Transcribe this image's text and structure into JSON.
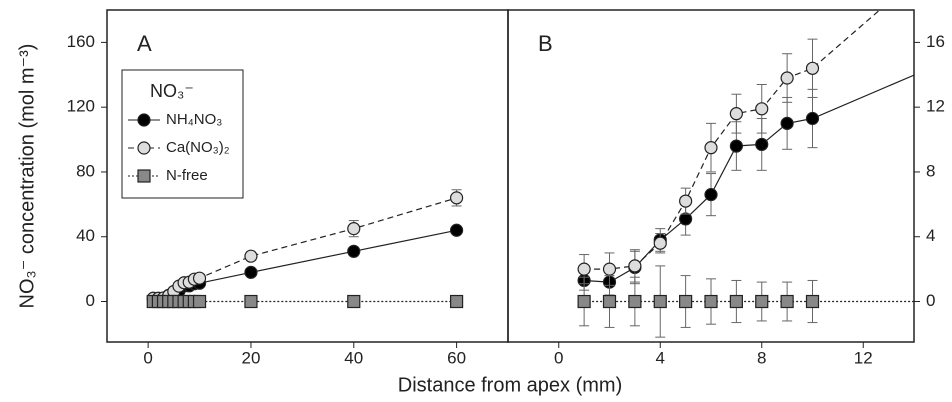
{
  "chart_data": [
    {
      "type": "line",
      "panel_label": "A",
      "ylabel": "NO₃⁻ concentration (mol m⁻³)",
      "xlabel": "Distance from apex (mm)",
      "xlim": [
        -8,
        70
      ],
      "ylim": [
        -25,
        180
      ],
      "xticks": [
        0,
        20,
        40,
        60
      ],
      "yticks": [
        0,
        40,
        80,
        120,
        160
      ],
      "y_axis_side": "left",
      "legend": "upper left",
      "legend_title": "NO₃⁻",
      "series": [
        {
          "name": "NH₄NO₃",
          "color": "#000000",
          "line": "solid",
          "marker": "circle",
          "x": [
            1,
            2,
            3,
            4,
            5,
            6,
            7,
            8,
            9,
            10,
            20,
            40,
            60
          ],
          "values": [
            1.3,
            1.2,
            2.1,
            3.8,
            5.1,
            6.6,
            9.6,
            9.7,
            11.0,
            11.3,
            18,
            31,
            44
          ],
          "errors": [
            0.6,
            0.8,
            1.0,
            0.7,
            1.0,
            1.3,
            1.5,
            1.6,
            1.6,
            1.8,
            1.5,
            2,
            2
          ]
        },
        {
          "name": "Ca(NO₃)₂",
          "color": "#dddddd",
          "line": "dashed",
          "marker": "circle",
          "x": [
            1,
            2,
            3,
            4,
            5,
            6,
            7,
            8,
            9,
            10,
            20,
            40,
            60
          ],
          "values": [
            2.0,
            2.0,
            2.2,
            3.6,
            6.2,
            9.5,
            11.6,
            11.9,
            13.8,
            14.4,
            28,
            45,
            64
          ],
          "errors": [
            0.9,
            1.0,
            1.0,
            0.6,
            0.8,
            1.5,
            1.2,
            1.5,
            1.5,
            1.8,
            2,
            5,
            5
          ]
        },
        {
          "name": "N-free",
          "color": "#888888",
          "line": "dotted",
          "marker": "square",
          "x": [
            1,
            2,
            3,
            4,
            5,
            6,
            7,
            8,
            9,
            10,
            20,
            40,
            60
          ],
          "values": [
            0,
            0,
            0,
            0,
            0,
            0,
            0,
            0,
            0,
            0,
            0,
            0,
            0
          ],
          "errors": [
            1.5,
            1.6,
            1.5,
            2.2,
            1.6,
            1.4,
            1.3,
            1.2,
            1.2,
            1.3,
            0.5,
            0.5,
            0.5
          ]
        }
      ]
    },
    {
      "type": "line",
      "panel_label": "B",
      "xlim": [
        -2,
        14
      ],
      "ylim": [
        -2.5,
        18
      ],
      "xticks": [
        0,
        4,
        8,
        12
      ],
      "yticks": [
        0,
        4,
        8,
        12,
        16
      ],
      "y_axis_side": "right",
      "series": [
        {
          "name": "NH₄NO₃",
          "color": "#000000",
          "line": "solid",
          "marker": "circle",
          "x": [
            1,
            2,
            3,
            4,
            5,
            6,
            7,
            8,
            9,
            10,
            20
          ],
          "values": [
            1.3,
            1.2,
            2.1,
            3.8,
            5.1,
            6.6,
            9.6,
            9.7,
            11.0,
            11.3,
            18
          ],
          "errors": [
            0.6,
            0.8,
            1.0,
            0.7,
            1.0,
            1.3,
            1.5,
            1.6,
            1.6,
            1.8,
            1.5
          ]
        },
        {
          "name": "Ca(NO₃)₂",
          "color": "#dddddd",
          "line": "dashed",
          "marker": "circle",
          "x": [
            1,
            2,
            3,
            4,
            5,
            6,
            7,
            8,
            9,
            10,
            20
          ],
          "values": [
            2.0,
            2.0,
            2.2,
            3.6,
            6.2,
            9.5,
            11.6,
            11.9,
            13.8,
            14.4,
            28
          ],
          "errors": [
            0.9,
            1.0,
            1.0,
            0.6,
            0.8,
            1.5,
            1.2,
            1.5,
            1.5,
            1.8,
            2
          ]
        },
        {
          "name": "N-free",
          "color": "#888888",
          "line": "dotted",
          "marker": "square",
          "x": [
            1,
            2,
            3,
            4,
            5,
            6,
            7,
            8,
            9,
            10,
            20
          ],
          "values": [
            0,
            0,
            0,
            0,
            0,
            0,
            0,
            0,
            0,
            0,
            0
          ],
          "errors": [
            1.5,
            1.6,
            1.5,
            2.2,
            1.6,
            1.4,
            1.3,
            1.2,
            1.2,
            1.3,
            0.5
          ]
        }
      ]
    }
  ]
}
